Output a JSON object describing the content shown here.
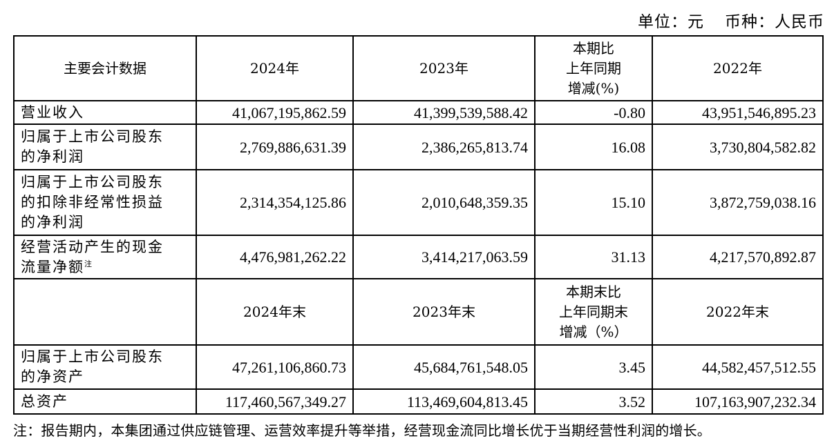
{
  "unit_line": {
    "unit": "单位：元",
    "currency": "币种：人民币"
  },
  "table": {
    "header1": [
      "主要会计数据",
      "2024年",
      "2023年",
      "本期比\n上年同期\n增减(%)",
      "2022年"
    ],
    "rows1": [
      {
        "label": "营业收入",
        "v2024": "41,067,195,862.59",
        "v2023": "41,399,539,588.42",
        "change": "-0.80",
        "v2022": "43,951,546,895.23"
      },
      {
        "label": "归属于上市公司股东\n的净利润",
        "v2024": "2,769,886,631.39",
        "v2023": "2,386,265,813.74",
        "change": "16.08",
        "v2022": "3,730,804,582.82"
      },
      {
        "label": "归属于上市公司股东\n的扣除非经常性损益\n的净利润",
        "v2024": "2,314,354,125.86",
        "v2023": "2,010,648,359.35",
        "change": "15.10",
        "v2022": "3,872,759,038.16"
      },
      {
        "label": "经营活动产生的现金\n流量净额",
        "label_note": "注",
        "v2024": "4,476,981,262.22",
        "v2023": "3,414,217,063.59",
        "change": "31.13",
        "v2022": "4,217,570,892.87"
      }
    ],
    "header2": [
      "",
      "2024年末",
      "2023年末",
      "本期末比\n上年同期末\n增减（%）",
      "2022年末"
    ],
    "rows2": [
      {
        "label": "归属于上市公司股东\n的净资产",
        "v2024": "47,261,106,860.73",
        "v2023": "45,684,761,548.05",
        "change": "3.45",
        "v2022": "44,582,457,512.55"
      },
      {
        "label": "总资产",
        "v2024": "117,460,567,349.27",
        "v2023": "113,469,604,813.45",
        "change": "3.52",
        "v2022": "107,163,907,232.34"
      }
    ]
  },
  "note": "注：报告期内，本集团通过供应链管理、运营效率提升等举措，经营现金流同比增长优于当期经营性利润的增长。"
}
